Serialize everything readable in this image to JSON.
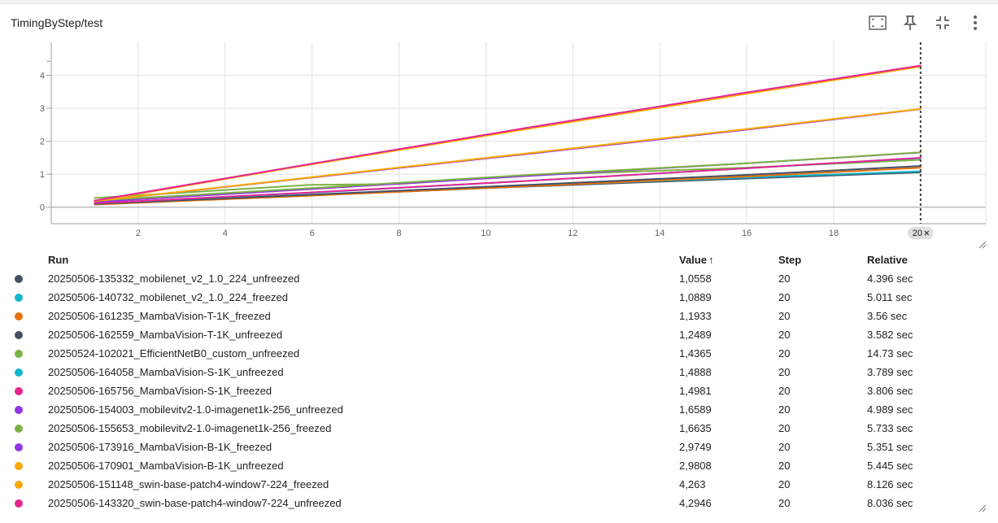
{
  "card": {
    "title": "TimingByStep/test",
    "toolbar": [
      {
        "name": "fit-domain-icon",
        "tooltip": "Fit line chart domains to data"
      },
      {
        "name": "pin-icon",
        "tooltip": "Pin card"
      },
      {
        "name": "collapse-icon",
        "tooltip": "Exit full size"
      },
      {
        "name": "more-vert-icon",
        "tooltip": "More"
      }
    ]
  },
  "chart_data": {
    "type": "line",
    "title": "",
    "xlabel": "",
    "ylabel": "",
    "xlim": [
      0,
      21.5
    ],
    "ylim": [
      -0.5,
      5
    ],
    "x_ticks": [
      "2",
      "4",
      "6",
      "8",
      "10",
      "12",
      "14",
      "16",
      "18"
    ],
    "y_ticks": [
      "0",
      "1",
      "2",
      "3",
      "4"
    ],
    "y_tick_values": [
      0,
      1,
      2,
      3,
      4
    ],
    "x_tick_values": [
      2,
      4,
      6,
      8,
      10,
      12,
      14,
      16,
      18
    ],
    "grid": true,
    "cursor_step": 20,
    "cursor_label": "20",
    "series": [
      {
        "name": "20250506-135332_mobilenet_v2_1.0_224_unfreezed",
        "color": "#425066",
        "x": [
          1,
          6,
          11,
          16,
          20
        ],
        "y": [
          0.09,
          0.36,
          0.63,
          0.87,
          1.0558
        ]
      },
      {
        "name": "20250506-140732_mobilenet_v2_1.0_224_freezed",
        "color": "#12b5cb",
        "x": [
          1,
          6,
          11,
          16,
          20
        ],
        "y": [
          0.1,
          0.38,
          0.65,
          0.9,
          1.0889
        ]
      },
      {
        "name": "20250506-161235_MambaVision-T-1K_freezed",
        "color": "#e8710a",
        "x": [
          1,
          6,
          11,
          16,
          20
        ],
        "y": [
          0.08,
          0.35,
          0.64,
          0.93,
          1.1933
        ]
      },
      {
        "name": "20250506-162559_MambaVision-T-1K_unfreezed",
        "color": "#425066",
        "x": [
          1,
          6,
          11,
          16,
          20
        ],
        "y": [
          0.1,
          0.38,
          0.68,
          0.98,
          1.2489
        ]
      },
      {
        "name": "20250524-102021_EfficientNetB0_custom_unfreezed",
        "color": "#7cb342",
        "x": [
          1,
          6,
          8,
          11,
          16,
          20
        ],
        "y": [
          0.28,
          0.68,
          0.7,
          0.97,
          1.2,
          1.4365
        ]
      },
      {
        "name": "20250506-164058_MambaVision-S-1K_unfreezed",
        "color": "#12b5cb",
        "x": [
          1,
          6,
          11,
          16,
          20
        ],
        "y": [
          0.12,
          0.44,
          0.8,
          1.18,
          1.4888
        ]
      },
      {
        "name": "20250506-165756_MambaVision-S-1K_freezed",
        "color": "#e52592",
        "x": [
          1,
          6,
          11,
          16,
          20
        ],
        "y": [
          0.12,
          0.45,
          0.8,
          1.18,
          1.4981
        ]
      },
      {
        "name": "20250506-154003_mobilevitv2-1.0-imagenet1k-256_unfreezed",
        "color": "#9334e6",
        "x": [
          1,
          6,
          11,
          16,
          20
        ],
        "y": [
          0.16,
          0.55,
          0.95,
          1.33,
          1.6589
        ]
      },
      {
        "name": "20250506-155653_mobilevitv2-1.0-imagenet1k-256_freezed",
        "color": "#7cb342",
        "x": [
          1,
          6,
          11,
          16,
          20
        ],
        "y": [
          0.2,
          0.58,
          0.98,
          1.33,
          1.6635
        ]
      },
      {
        "name": "20250506-173916_MambaVision-B-1K_freezed",
        "color": "#9334e6",
        "x": [
          1,
          6,
          11,
          16,
          20
        ],
        "y": [
          0.18,
          0.9,
          1.62,
          2.35,
          2.9749
        ]
      },
      {
        "name": "20250506-170901_MambaVision-B-1K_unfreezed",
        "color": "#f9ab00",
        "x": [
          1,
          6,
          11,
          16,
          20
        ],
        "y": [
          0.18,
          0.91,
          1.64,
          2.37,
          2.9808
        ]
      },
      {
        "name": "20250506-151148_swin-base-patch4-window7-224_freezed",
        "color": "#f9ab00",
        "x": [
          1,
          6,
          11,
          16,
          20
        ],
        "y": [
          0.18,
          1.3,
          2.38,
          3.44,
          4.263
        ]
      },
      {
        "name": "20250506-143320_swin-base-patch4-window7-224_unfreezed",
        "color": "#e52592",
        "x": [
          1,
          6,
          11,
          16,
          20
        ],
        "y": [
          0.2,
          1.32,
          2.42,
          3.48,
          4.2946
        ]
      }
    ]
  },
  "table": {
    "headers": {
      "run": "Run",
      "value": "Value",
      "value_sort_arrow": "↑",
      "step": "Step",
      "relative": "Relative"
    },
    "rows": [
      {
        "color": "#425066",
        "run": "20250506-135332_mobilenet_v2_1.0_224_unfreezed",
        "value": "1,0558",
        "step": "20",
        "relative": "4.396 sec"
      },
      {
        "color": "#12b5cb",
        "run": "20250506-140732_mobilenet_v2_1.0_224_freezed",
        "value": "1,0889",
        "step": "20",
        "relative": "5.011 sec"
      },
      {
        "color": "#e8710a",
        "run": "20250506-161235_MambaVision-T-1K_freezed",
        "value": "1,1933",
        "step": "20",
        "relative": "3.56 sec"
      },
      {
        "color": "#425066",
        "run": "20250506-162559_MambaVision-T-1K_unfreezed",
        "value": "1,2489",
        "step": "20",
        "relative": "3.582 sec"
      },
      {
        "color": "#7cb342",
        "run": "20250524-102021_EfficientNetB0_custom_unfreezed",
        "value": "1,4365",
        "step": "20",
        "relative": "14.73 sec"
      },
      {
        "color": "#12b5cb",
        "run": "20250506-164058_MambaVision-S-1K_unfreezed",
        "value": "1,4888",
        "step": "20",
        "relative": "3.789 sec"
      },
      {
        "color": "#e52592",
        "run": "20250506-165756_MambaVision-S-1K_freezed",
        "value": "1,4981",
        "step": "20",
        "relative": "3.806 sec"
      },
      {
        "color": "#9334e6",
        "run": "20250506-154003_mobilevitv2-1.0-imagenet1k-256_unfreezed",
        "value": "1,6589",
        "step": "20",
        "relative": "4.989 sec"
      },
      {
        "color": "#7cb342",
        "run": "20250506-155653_mobilevitv2-1.0-imagenet1k-256_freezed",
        "value": "1,6635",
        "step": "20",
        "relative": "5.733 sec"
      },
      {
        "color": "#9334e6",
        "run": "20250506-173916_MambaVision-B-1K_freezed",
        "value": "2,9749",
        "step": "20",
        "relative": "5.351 sec"
      },
      {
        "color": "#f9ab00",
        "run": "20250506-170901_MambaVision-B-1K_unfreezed",
        "value": "2,9808",
        "step": "20",
        "relative": "5.445 sec"
      },
      {
        "color": "#f9ab00",
        "run": "20250506-151148_swin-base-patch4-window7-224_freezed",
        "value": "4,263",
        "step": "20",
        "relative": "8.126 sec"
      },
      {
        "color": "#e52592",
        "run": "20250506-143320_swin-base-patch4-window7-224_unfreezed",
        "value": "4,2946",
        "step": "20",
        "relative": "8.036 sec"
      }
    ]
  }
}
